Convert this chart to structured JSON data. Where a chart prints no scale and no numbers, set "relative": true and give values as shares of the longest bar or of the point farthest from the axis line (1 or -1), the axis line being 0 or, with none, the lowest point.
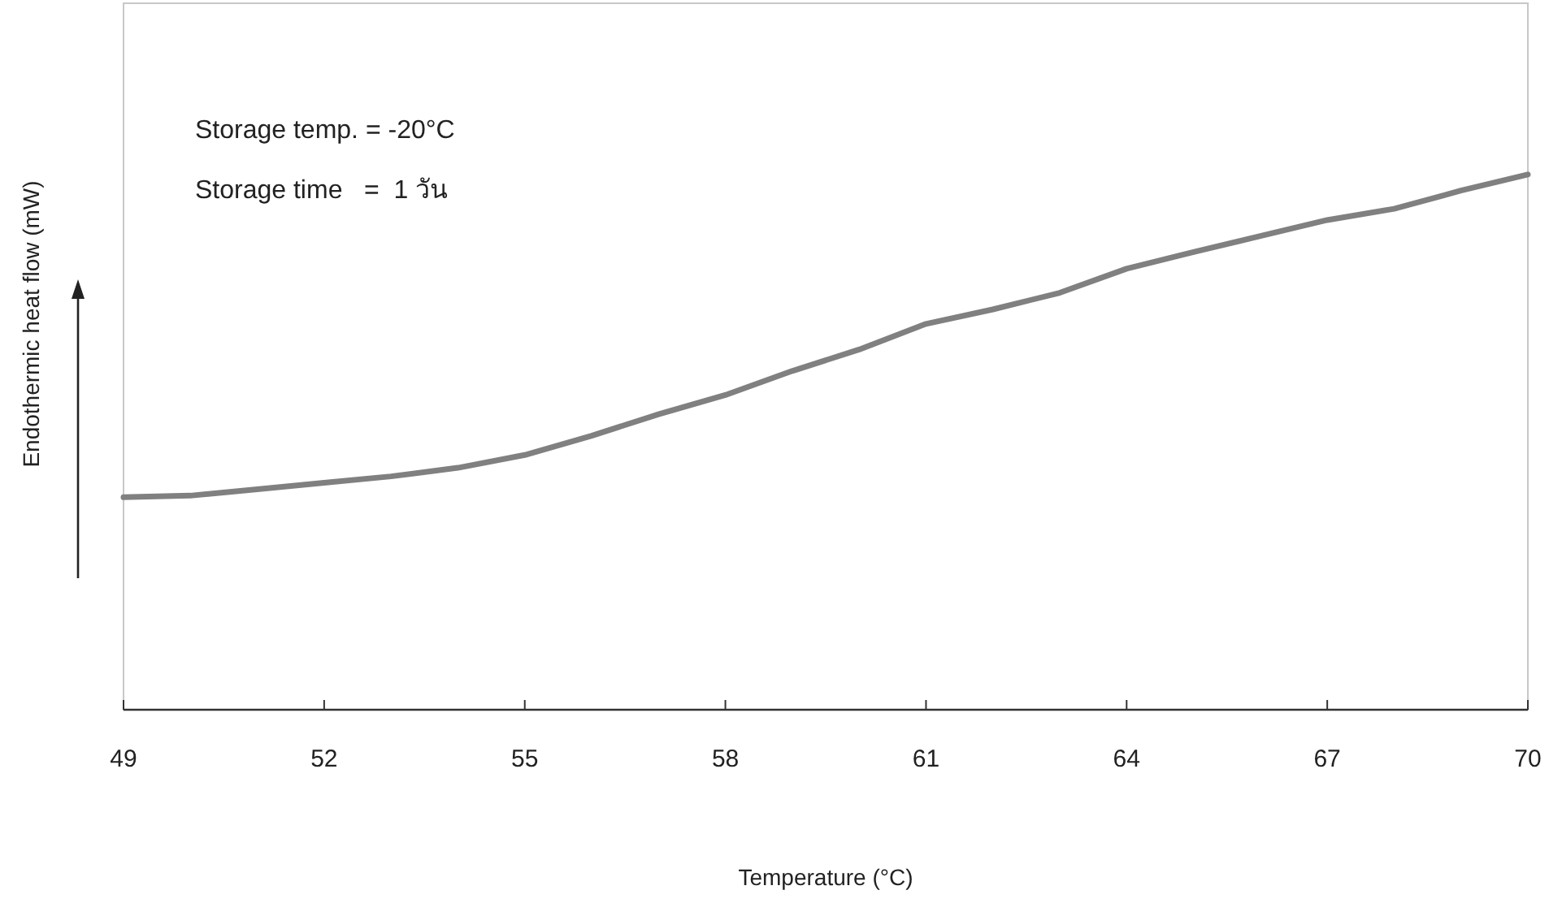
{
  "chart_data": {
    "type": "line",
    "relative": true,
    "xlabel": "Temperature (°C)",
    "ylabel": "Endothermic heat flow (mW)",
    "annotations": [
      "Storage temp. = -20°C",
      "Storage time   =  1 วัน"
    ],
    "xlim": [
      49,
      70
    ],
    "xticks": [
      49,
      52,
      55,
      58,
      61,
      64,
      67,
      70
    ],
    "grid": false,
    "marker": "none",
    "line_style": "solid",
    "x": [
      49,
      50,
      51,
      52,
      53,
      54,
      55,
      56,
      57,
      58,
      59,
      60,
      61,
      62,
      63,
      64,
      65,
      66,
      67,
      68,
      69,
      70
    ],
    "series": [
      {
        "color": "#808080",
        "values": [
          0.397,
          0.4,
          0.412,
          0.424,
          0.436,
          0.452,
          0.476,
          0.512,
          0.552,
          0.588,
          0.633,
          0.673,
          0.721,
          0.748,
          0.779,
          0.824,
          0.855,
          0.885,
          0.915,
          0.936,
          0.97,
          1
        ]
      }
    ]
  }
}
